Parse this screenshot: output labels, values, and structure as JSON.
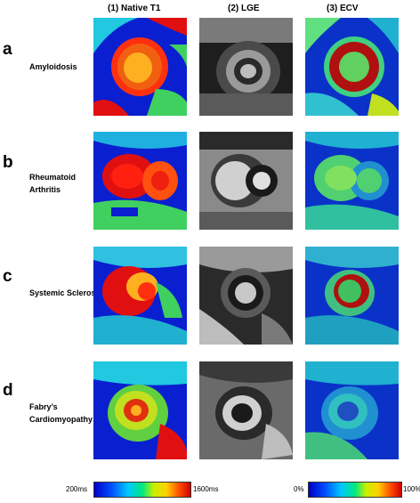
{
  "columns": [
    "(1) Native T1",
    "(2) LGE",
    "(3) ECV"
  ],
  "rows": [
    {
      "letter": "a",
      "label_lines": [
        "Amyloidosis"
      ]
    },
    {
      "letter": "b",
      "label_lines": [
        "Rheumatoid",
        "Arthritis"
      ]
    },
    {
      "letter": "c",
      "label_lines": [
        "Systemic Sclerosis"
      ]
    },
    {
      "letter": "d",
      "label_lines": [
        "Fabry’s",
        "Cardiomyopathy"
      ]
    }
  ],
  "scales": {
    "t1": {
      "min": "200ms",
      "max": "1600ms"
    },
    "ecv": {
      "min": "0%",
      "max": "100%"
    }
  },
  "colors": {
    "t1_blue": "#0a1fd0",
    "t1_red": "#e01010",
    "t1_green": "#40d060",
    "ecv_blue": "#0a32c8",
    "ecv_red": "#b01010",
    "lge_bg": "#2a2a2a"
  }
}
